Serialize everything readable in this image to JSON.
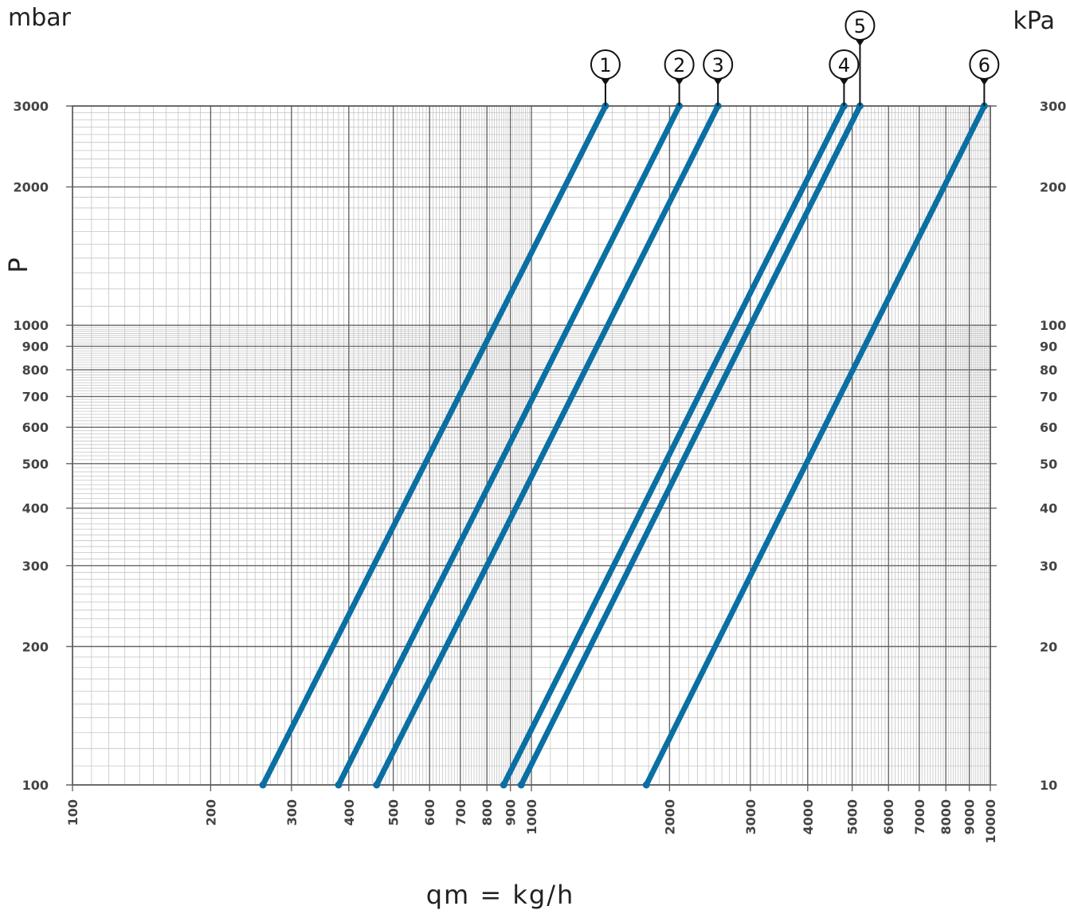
{
  "chart_data": {
    "type": "line",
    "y_left_unit": "mbar",
    "y_right_unit": "kPa",
    "ylabel": "P",
    "xlabel": "qm  =  kg/h",
    "x_scale": "log",
    "y_scale": "log",
    "xlim": [
      100,
      10000
    ],
    "ylim": [
      100,
      3000
    ],
    "x_ticks": [
      "100",
      "200",
      "300",
      "400",
      "500",
      "600",
      "700",
      "800",
      "900",
      "1000",
      "2000",
      "3000",
      "4000",
      "5000",
      "6000",
      "7000",
      "8000",
      "9000",
      "10000"
    ],
    "y_ticks_left": [
      "100",
      "200",
      "300",
      "400",
      "500",
      "600",
      "700",
      "800",
      "900",
      "1000",
      "2000",
      "3000"
    ],
    "y_ticks_right": [
      "10",
      "20",
      "30",
      "40",
      "50",
      "60",
      "70",
      "80",
      "90",
      "100",
      "200",
      "300"
    ],
    "line_color": "#0a6fa3",
    "series": [
      {
        "name": "1",
        "points": [
          [
            260,
            100
          ],
          [
            1450,
            3000
          ]
        ]
      },
      {
        "name": "2",
        "points": [
          [
            380,
            100
          ],
          [
            2100,
            3000
          ]
        ]
      },
      {
        "name": "3",
        "points": [
          [
            460,
            100
          ],
          [
            2550,
            3000
          ]
        ]
      },
      {
        "name": "4",
        "points": [
          [
            870,
            100
          ],
          [
            4800,
            3000
          ]
        ]
      },
      {
        "name": "5",
        "points": [
          [
            950,
            100
          ],
          [
            5200,
            3000
          ]
        ]
      },
      {
        "name": "6",
        "points": [
          [
            1780,
            100
          ],
          [
            9700,
            3000
          ]
        ]
      }
    ]
  }
}
